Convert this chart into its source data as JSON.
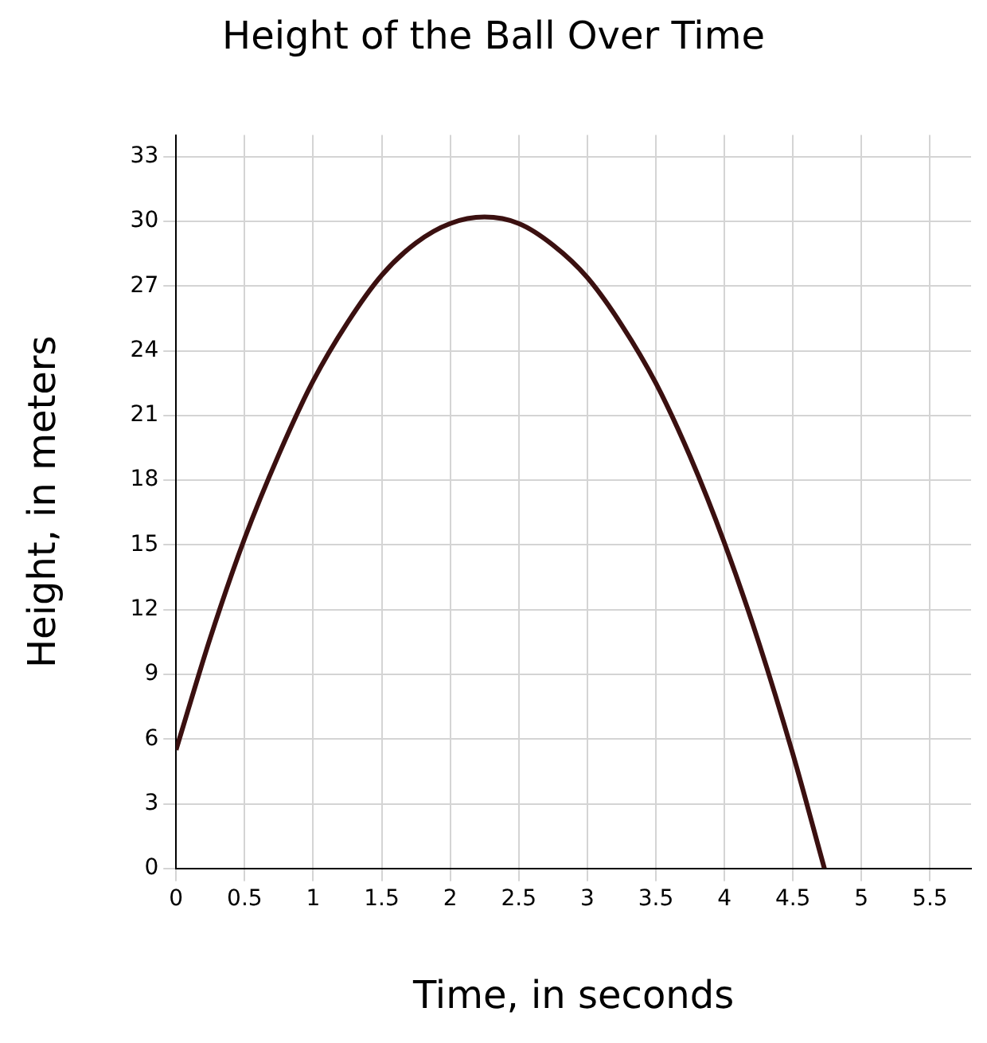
{
  "chart_data": {
    "type": "line",
    "title": "Height of the Ball Over Time",
    "xlabel": "Time, in seconds",
    "ylabel": "Height, in meters",
    "series": [
      {
        "color": "#3b1010",
        "x": [
          0,
          0.25,
          0.5,
          0.75,
          1,
          1.25,
          1.5,
          1.75,
          2,
          2.25,
          2.5,
          2.75,
          3,
          3.25,
          3.5,
          3.75,
          4,
          4.25,
          4.5,
          4.73
        ],
        "values": [
          5.5,
          10.7,
          15.3,
          19.2,
          22.6,
          25.3,
          27.5,
          29,
          29.9,
          30.2,
          29.9,
          28.9,
          27.4,
          25.2,
          22.5,
          19.1,
          15.1,
          10.5,
          5.3,
          0
        ]
      }
    ],
    "xlim": [
      0,
      5.8
    ],
    "ylim": [
      0,
      34
    ],
    "xticks": [
      0,
      0.5,
      1,
      1.5,
      2,
      2.5,
      3,
      3.5,
      4,
      4.5,
      5,
      5.5
    ],
    "yticks": [
      0,
      3,
      6,
      9,
      12,
      15,
      18,
      21,
      24,
      27,
      30,
      33
    ],
    "grid": true,
    "legend": false,
    "marker": "none",
    "line_style": "solid"
  }
}
